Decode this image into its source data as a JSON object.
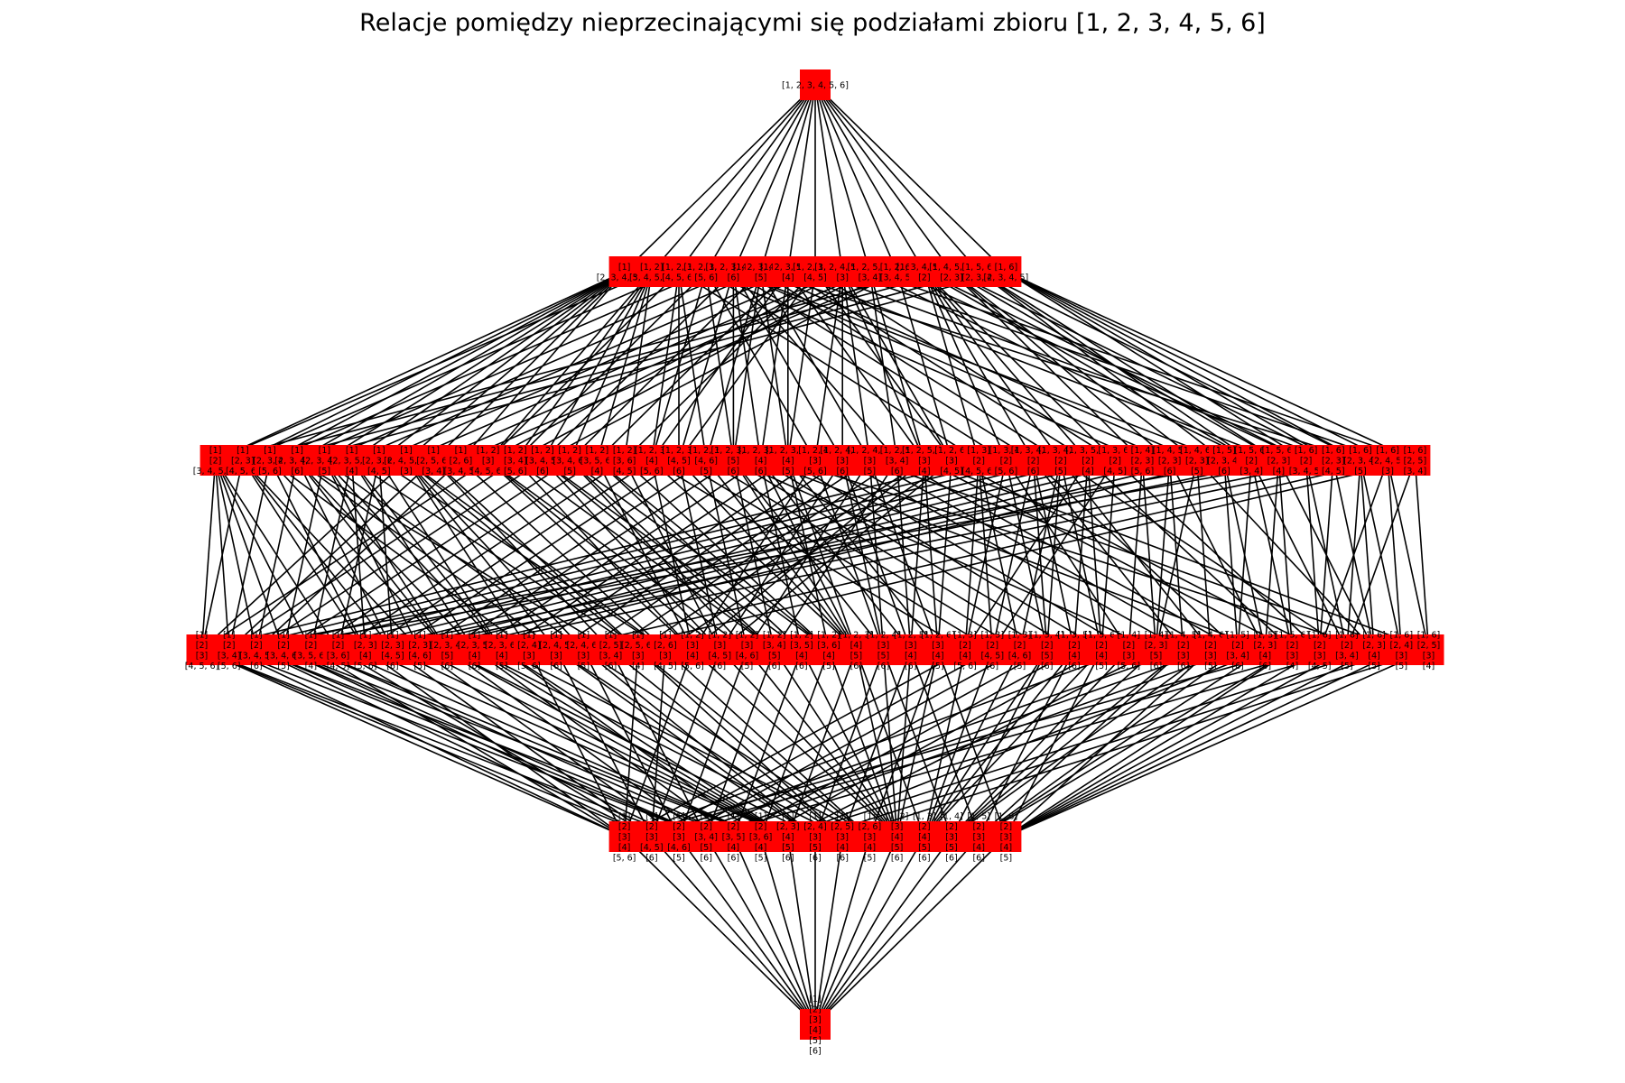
{
  "title": "Relacje pomiędzy nieprzecinającymi się podziałami zbioru [1, 2, 3, 4, 5, 6]",
  "node_color": "#ff0000",
  "edge_color": "#000000",
  "levels": [
    {
      "rank": 1,
      "nodes": [
        {
          "blocks": [
            "[1, 2, 3, 4, 5, 6]"
          ]
        }
      ]
    },
    {
      "rank": 2,
      "nodes": [
        {
          "blocks": [
            "[1]",
            "[2, 3, 4, 5, 6]"
          ]
        },
        {
          "blocks": [
            "[1, 2]",
            "[3, 4, 5, 6]"
          ]
        },
        {
          "blocks": [
            "[1, 2, 3]",
            "[4, 5, 6]"
          ]
        },
        {
          "blocks": [
            "[1, 2, 3, 4]",
            "[5, 6]"
          ]
        },
        {
          "blocks": [
            "[1, 2, 3, 4, 5]",
            "[6]"
          ]
        },
        {
          "blocks": [
            "[1, 2, 3, 4, 6]",
            "[5]"
          ]
        },
        {
          "blocks": [
            "[1, 2, 3, 5, 6]",
            "[4]"
          ]
        },
        {
          "blocks": [
            "[1, 2, 3, 6]",
            "[4, 5]"
          ]
        },
        {
          "blocks": [
            "[1, 2, 4, 5, 6]",
            "[3]"
          ]
        },
        {
          "blocks": [
            "[1, 2, 5, 6]",
            "[3, 4]"
          ]
        },
        {
          "blocks": [
            "[1, 2, 6]",
            "[3, 4, 5]"
          ]
        },
        {
          "blocks": [
            "[1, 3, 4, 5, 6]",
            "[2]"
          ]
        },
        {
          "blocks": [
            "[1, 4, 5, 6]",
            "[2, 3]"
          ]
        },
        {
          "blocks": [
            "[1, 5, 6]",
            "[2, 3, 4]"
          ]
        },
        {
          "blocks": [
            "[1, 6]",
            "[2, 3, 4, 5]"
          ]
        }
      ]
    },
    {
      "rank": 3,
      "nodes": [
        {
          "blocks": [
            "[1]",
            "[2]",
            "[3, 4, 5, 6]"
          ]
        },
        {
          "blocks": [
            "[1]",
            "[2, 3]",
            "[4, 5, 6]"
          ]
        },
        {
          "blocks": [
            "[1]",
            "[2, 3, 4]",
            "[5, 6]"
          ]
        },
        {
          "blocks": [
            "[1]",
            "[2, 3, 4, 5]",
            "[6]"
          ]
        },
        {
          "blocks": [
            "[1]",
            "[2, 3, 4, 6]",
            "[5]"
          ]
        },
        {
          "blocks": [
            "[1]",
            "[2, 3, 5, 6]",
            "[4]"
          ]
        },
        {
          "blocks": [
            "[1]",
            "[2, 3, 6]",
            "[4, 5]"
          ]
        },
        {
          "blocks": [
            "[1]",
            "[2, 4, 5, 6]",
            "[3]"
          ]
        },
        {
          "blocks": [
            "[1]",
            "[2, 5, 6]",
            "[3, 4]"
          ]
        },
        {
          "blocks": [
            "[1]",
            "[2, 6]",
            "[3, 4, 5]"
          ]
        },
        {
          "blocks": [
            "[1, 2]",
            "[3]",
            "[4, 5, 6]"
          ]
        },
        {
          "blocks": [
            "[1, 2]",
            "[3, 4]",
            "[5, 6]"
          ]
        },
        {
          "blocks": [
            "[1, 2]",
            "[3, 4, 5]",
            "[6]"
          ]
        },
        {
          "blocks": [
            "[1, 2]",
            "[3, 4, 6]",
            "[5]"
          ]
        },
        {
          "blocks": [
            "[1, 2]",
            "[3, 5, 6]",
            "[4]"
          ]
        },
        {
          "blocks": [
            "[1, 2]",
            "[3, 6]",
            "[4, 5]"
          ]
        },
        {
          "blocks": [
            "[1, 2, 3]",
            "[4]",
            "[5, 6]"
          ]
        },
        {
          "blocks": [
            "[1, 2, 3]",
            "[4, 5]",
            "[6]"
          ]
        },
        {
          "blocks": [
            "[1, 2, 3]",
            "[4, 6]",
            "[5]"
          ]
        },
        {
          "blocks": [
            "[1, 2, 3, 4]",
            "[5]",
            "[6]"
          ]
        },
        {
          "blocks": [
            "[1, 2, 3, 5]",
            "[4]",
            "[6]"
          ]
        },
        {
          "blocks": [
            "[1, 2, 3, 6]",
            "[4]",
            "[5]"
          ]
        },
        {
          "blocks": [
            "[1, 2, 4]",
            "[3]",
            "[5, 6]"
          ]
        },
        {
          "blocks": [
            "[1, 2, 4, 5]",
            "[3]",
            "[6]"
          ]
        },
        {
          "blocks": [
            "[1, 2, 4, 6]",
            "[3]",
            "[5]"
          ]
        },
        {
          "blocks": [
            "[1, 2, 5]",
            "[3, 4]",
            "[6]"
          ]
        },
        {
          "blocks": [
            "[1, 2, 5, 6]",
            "[3]",
            "[4]"
          ]
        },
        {
          "blocks": [
            "[1, 2, 6]",
            "[3]",
            "[4, 5]"
          ]
        },
        {
          "blocks": [
            "[1, 3]",
            "[2]",
            "[4, 5, 6]"
          ]
        },
        {
          "blocks": [
            "[1, 3, 4]",
            "[2]",
            "[5, 6]"
          ]
        },
        {
          "blocks": [
            "[1, 3, 4, 5]",
            "[2]",
            "[6]"
          ]
        },
        {
          "blocks": [
            "[1, 3, 4, 6]",
            "[2]",
            "[5]"
          ]
        },
        {
          "blocks": [
            "[1, 3, 5, 6]",
            "[2]",
            "[4]"
          ]
        },
        {
          "blocks": [
            "[1, 3, 6]",
            "[2]",
            "[4, 5]"
          ]
        },
        {
          "blocks": [
            "[1, 4]",
            "[2, 3]",
            "[5, 6]"
          ]
        },
        {
          "blocks": [
            "[1, 4, 5]",
            "[2, 3]",
            "[6]"
          ]
        },
        {
          "blocks": [
            "[1, 4, 6]",
            "[2, 3]",
            "[5]"
          ]
        },
        {
          "blocks": [
            "[1, 5]",
            "[2, 3, 4]",
            "[6]"
          ]
        },
        {
          "blocks": [
            "[1, 5, 6]",
            "[2]",
            "[3, 4]"
          ]
        },
        {
          "blocks": [
            "[1, 5, 6]",
            "[2, 3]",
            "[4]"
          ]
        },
        {
          "blocks": [
            "[1, 6]",
            "[2]",
            "[3, 4, 5]"
          ]
        },
        {
          "blocks": [
            "[1, 6]",
            "[2, 3]",
            "[4, 5]"
          ]
        },
        {
          "blocks": [
            "[1, 6]",
            "[2, 3, 4]",
            "[5]"
          ]
        },
        {
          "blocks": [
            "[1, 6]",
            "[2, 4, 5]",
            "[3]"
          ]
        },
        {
          "blocks": [
            "[1, 6]",
            "[2, 5]",
            "[3, 4]"
          ]
        }
      ]
    },
    {
      "rank": 4,
      "nodes": [
        {
          "blocks": [
            "[1]",
            "[2]",
            "[3]",
            "[4, 5, 6]"
          ]
        },
        {
          "blocks": [
            "[1]",
            "[2]",
            "[3, 4]",
            "[5, 6]"
          ]
        },
        {
          "blocks": [
            "[1]",
            "[2]",
            "[3, 4, 5]",
            "[6]"
          ]
        },
        {
          "blocks": [
            "[1]",
            "[2]",
            "[3, 4, 6]",
            "[5]"
          ]
        },
        {
          "blocks": [
            "[1]",
            "[2]",
            "[3, 5, 6]",
            "[4]"
          ]
        },
        {
          "blocks": [
            "[1]",
            "[2]",
            "[3, 6]",
            "[4, 5]"
          ]
        },
        {
          "blocks": [
            "[1]",
            "[2, 3]",
            "[4]",
            "[5, 6]"
          ]
        },
        {
          "blocks": [
            "[1]",
            "[2, 3]",
            "[4, 5]",
            "[6]"
          ]
        },
        {
          "blocks": [
            "[1]",
            "[2, 3]",
            "[4, 6]",
            "[5]"
          ]
        },
        {
          "blocks": [
            "[1]",
            "[2, 3, 4]",
            "[5]",
            "[6]"
          ]
        },
        {
          "blocks": [
            "[1]",
            "[2, 3, 5]",
            "[4]",
            "[6]"
          ]
        },
        {
          "blocks": [
            "[1]",
            "[2, 3, 6]",
            "[4]",
            "[5]"
          ]
        },
        {
          "blocks": [
            "[1]",
            "[2, 4]",
            "[3]",
            "[5, 6]"
          ]
        },
        {
          "blocks": [
            "[1]",
            "[2, 4, 5]",
            "[3]",
            "[6]"
          ]
        },
        {
          "blocks": [
            "[1]",
            "[2, 4, 6]",
            "[3]",
            "[5]"
          ]
        },
        {
          "blocks": [
            "[1]",
            "[2, 5]",
            "[3, 4]",
            "[6]"
          ]
        },
        {
          "blocks": [
            "[1]",
            "[2, 5, 6]",
            "[3]",
            "[4]"
          ]
        },
        {
          "blocks": [
            "[1]",
            "[2, 6]",
            "[3]",
            "[4, 5]"
          ]
        },
        {
          "blocks": [
            "[1, 2]",
            "[3]",
            "[4]",
            "[5, 6]"
          ]
        },
        {
          "blocks": [
            "[1, 2]",
            "[3]",
            "[4, 5]",
            "[6]"
          ]
        },
        {
          "blocks": [
            "[1, 2]",
            "[3]",
            "[4, 6]",
            "[5]"
          ]
        },
        {
          "blocks": [
            "[1, 2]",
            "[3, 4]",
            "[5]",
            "[6]"
          ]
        },
        {
          "blocks": [
            "[1, 2]",
            "[3, 5]",
            "[4]",
            "[6]"
          ]
        },
        {
          "blocks": [
            "[1, 2]",
            "[3, 6]",
            "[4]",
            "[5]"
          ]
        },
        {
          "blocks": [
            "[1, 2, 3]",
            "[4]",
            "[5]",
            "[6]"
          ]
        },
        {
          "blocks": [
            "[1, 2, 4]",
            "[3]",
            "[5]",
            "[6]"
          ]
        },
        {
          "blocks": [
            "[1, 2, 5]",
            "[3]",
            "[4]",
            "[6]"
          ]
        },
        {
          "blocks": [
            "[1, 2, 6]",
            "[3]",
            "[4]",
            "[5]"
          ]
        },
        {
          "blocks": [
            "[1, 3]",
            "[2]",
            "[4]",
            "[5, 6]"
          ]
        },
        {
          "blocks": [
            "[1, 3]",
            "[2]",
            "[4, 5]",
            "[6]"
          ]
        },
        {
          "blocks": [
            "[1, 3]",
            "[2]",
            "[4, 6]",
            "[5]"
          ]
        },
        {
          "blocks": [
            "[1, 3, 4]",
            "[2]",
            "[5]",
            "[6]"
          ]
        },
        {
          "blocks": [
            "[1, 3, 5]",
            "[2]",
            "[4]",
            "[6]"
          ]
        },
        {
          "blocks": [
            "[1, 3, 6]",
            "[2]",
            "[4]",
            "[5]"
          ]
        },
        {
          "blocks": [
            "[1, 4]",
            "[2]",
            "[3]",
            "[5, 6]"
          ]
        },
        {
          "blocks": [
            "[1, 4]",
            "[2, 3]",
            "[5]",
            "[6]"
          ]
        },
        {
          "blocks": [
            "[1, 4, 5]",
            "[2]",
            "[3]",
            "[6]"
          ]
        },
        {
          "blocks": [
            "[1, 4, 6]",
            "[2]",
            "[3]",
            "[5]"
          ]
        },
        {
          "blocks": [
            "[1, 5]",
            "[2]",
            "[3, 4]",
            "[6]"
          ]
        },
        {
          "blocks": [
            "[1, 5]",
            "[2, 3]",
            "[4]",
            "[6]"
          ]
        },
        {
          "blocks": [
            "[1, 5, 6]",
            "[2]",
            "[3]",
            "[4]"
          ]
        },
        {
          "blocks": [
            "[1, 6]",
            "[2]",
            "[3]",
            "[4, 5]"
          ]
        },
        {
          "blocks": [
            "[1, 6]",
            "[2]",
            "[3, 4]",
            "[5]"
          ]
        },
        {
          "blocks": [
            "[1, 6]",
            "[2, 3]",
            "[4]",
            "[5]"
          ]
        },
        {
          "blocks": [
            "[1, 6]",
            "[2, 4]",
            "[3]",
            "[5]"
          ]
        },
        {
          "blocks": [
            "[1, 6]",
            "[2, 5]",
            "[3]",
            "[4]"
          ]
        }
      ]
    },
    {
      "rank": 5,
      "nodes": [
        {
          "blocks": [
            "[1]",
            "[2]",
            "[3]",
            "[4]",
            "[5, 6]"
          ]
        },
        {
          "blocks": [
            "[1]",
            "[2]",
            "[3]",
            "[4, 5]",
            "[6]"
          ]
        },
        {
          "blocks": [
            "[1]",
            "[2]",
            "[3]",
            "[4, 6]",
            "[5]"
          ]
        },
        {
          "blocks": [
            "[1]",
            "[2]",
            "[3, 4]",
            "[5]",
            "[6]"
          ]
        },
        {
          "blocks": [
            "[1]",
            "[2]",
            "[3, 5]",
            "[4]",
            "[6]"
          ]
        },
        {
          "blocks": [
            "[1]",
            "[2]",
            "[3, 6]",
            "[4]",
            "[5]"
          ]
        },
        {
          "blocks": [
            "[1]",
            "[2, 3]",
            "[4]",
            "[5]",
            "[6]"
          ]
        },
        {
          "blocks": [
            "[1]",
            "[2, 4]",
            "[3]",
            "[5]",
            "[6]"
          ]
        },
        {
          "blocks": [
            "[1]",
            "[2, 5]",
            "[3]",
            "[4]",
            "[6]"
          ]
        },
        {
          "blocks": [
            "[1]",
            "[2, 6]",
            "[3]",
            "[4]",
            "[5]"
          ]
        },
        {
          "blocks": [
            "[1, 2]",
            "[3]",
            "[4]",
            "[5]",
            "[6]"
          ]
        },
        {
          "blocks": [
            "[1, 3]",
            "[2]",
            "[4]",
            "[5]",
            "[6]"
          ]
        },
        {
          "blocks": [
            "[1, 4]",
            "[2]",
            "[3]",
            "[5]",
            "[6]"
          ]
        },
        {
          "blocks": [
            "[1, 5]",
            "[2]",
            "[3]",
            "[4]",
            "[6]"
          ]
        },
        {
          "blocks": [
            "[1, 6]",
            "[2]",
            "[3]",
            "[4]",
            "[5]"
          ]
        }
      ]
    },
    {
      "rank": 6,
      "nodes": [
        {
          "blocks": [
            "[1]",
            "[2]",
            "[3]",
            "[4]",
            "[5]",
            "[6]"
          ]
        }
      ]
    }
  ]
}
